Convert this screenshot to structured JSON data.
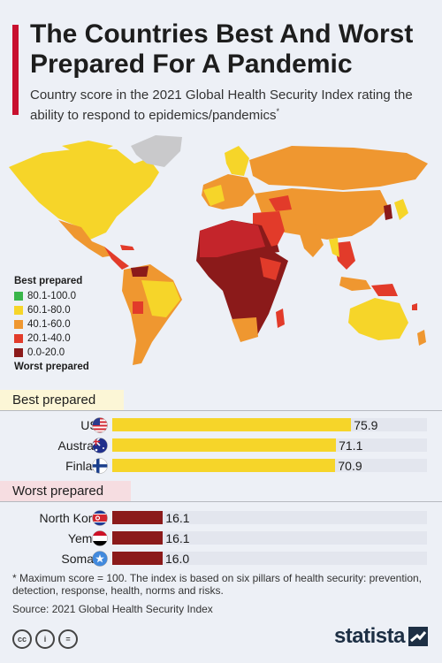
{
  "header": {
    "title": "The Countries Best And Worst Prepared For A Pandemic",
    "subtitle": "Country score in the 2021 Global Health Security Index rating the ability to respond to epidemics/pandemics",
    "subtitle_mark": "*"
  },
  "legend": {
    "top_label": "Best prepared",
    "bottom_label": "Worst prepared",
    "items": [
      {
        "label": "80.1-100.0",
        "color": "#39b54a"
      },
      {
        "label": "60.1-80.0",
        "color": "#f6d529"
      },
      {
        "label": "40.1-60.0",
        "color": "#ef9730"
      },
      {
        "label": "20.1-40.0",
        "color": "#e23b2a"
      },
      {
        "label": "0.0-20.0",
        "color": "#8b1a1a"
      }
    ],
    "no_data_color": "#c9c9cb"
  },
  "chart_data": {
    "type": "bar",
    "orientation": "horizontal",
    "xlim": [
      0,
      100
    ],
    "groups": [
      {
        "name": "Best prepared",
        "bar_color": "#f6d529",
        "rows": [
          {
            "country": "USA",
            "value": 75.9,
            "flag": "usa-flag-icon"
          },
          {
            "country": "Australia",
            "value": 71.1,
            "flag": "australia-flag-icon"
          },
          {
            "country": "Finland",
            "value": 70.9,
            "flag": "finland-flag-icon"
          }
        ]
      },
      {
        "name": "Worst prepared",
        "bar_color": "#8b1a1a",
        "rows": [
          {
            "country": "North Korea",
            "value": 16.1,
            "flag": "north-korea-flag-icon"
          },
          {
            "country": "Yemen",
            "value": 16.1,
            "flag": "yemen-flag-icon"
          },
          {
            "country": "Somalia",
            "value": 16.0,
            "flag": "somalia-flag-icon"
          }
        ]
      }
    ]
  },
  "footer": {
    "footnote": "* Maximum score = 100. The index is based on six pillars of health security: prevention, detection, response, health, norms and risks.",
    "source": "Source: 2021 Global Health Security Index",
    "license_icons": [
      "cc-icon",
      "by-icon",
      "nd-icon"
    ],
    "license_labels": [
      "cc",
      "i",
      "="
    ],
    "brand": "statista"
  }
}
